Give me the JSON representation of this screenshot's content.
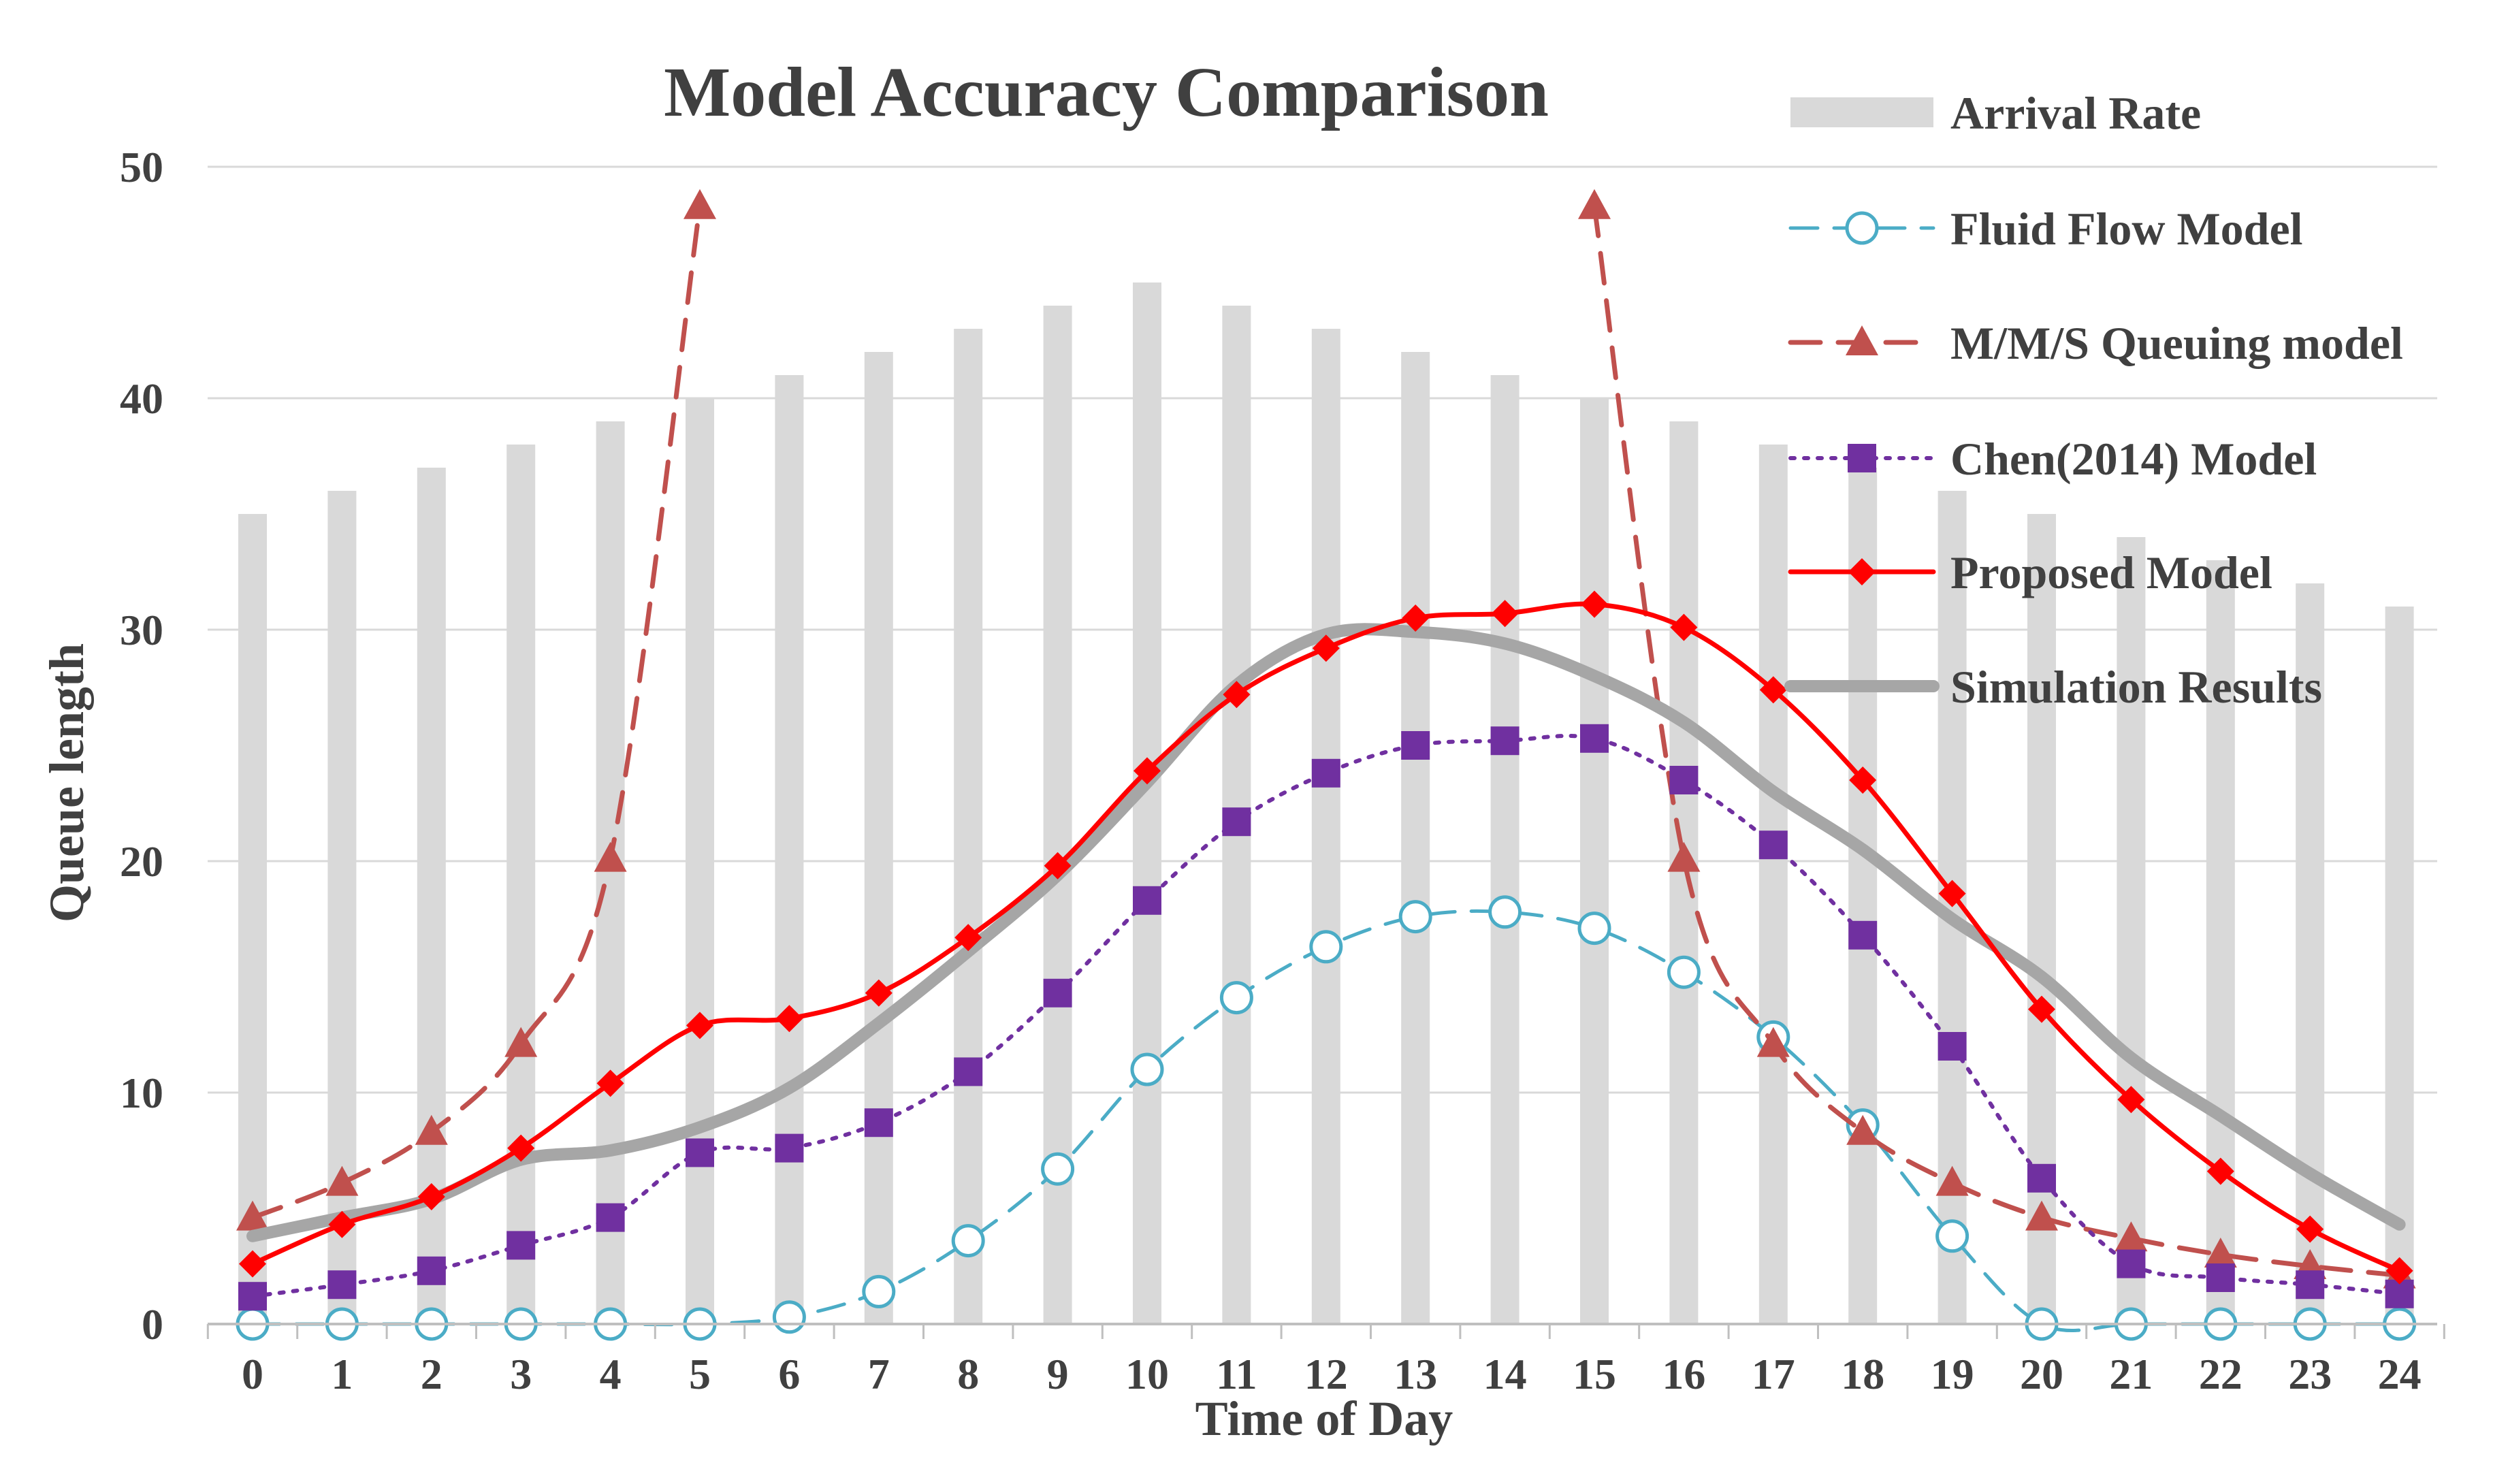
{
  "chart_data": {
    "type": "bar",
    "title": "Model Accuracy Comparison",
    "xlabel": "Time  of Day",
    "ylabel": "Queue length",
    "x": [
      0,
      1,
      2,
      3,
      4,
      5,
      6,
      7,
      8,
      9,
      10,
      11,
      12,
      13,
      14,
      15,
      16,
      17,
      18,
      19,
      20,
      21,
      22,
      23,
      24
    ],
    "xticks": [
      "0",
      "1",
      "2",
      "3",
      "4",
      "5",
      "6",
      "7",
      "8",
      "9",
      "10",
      "11",
      "12",
      "13",
      "14",
      "15",
      "16",
      "17",
      "18",
      "19",
      "20",
      "21",
      "22",
      "23",
      "24"
    ],
    "yticks": [
      "0",
      "10",
      "20",
      "30",
      "40",
      "50"
    ],
    "ylim": [
      0,
      50
    ],
    "grid": true,
    "legend_position": "right",
    "series": [
      {
        "name": "Arrival Rate",
        "type": "bar",
        "color": "#d9d9d9",
        "values": [
          35,
          36,
          37,
          38,
          39,
          40,
          41,
          42,
          43,
          44,
          45,
          44,
          43,
          42,
          41,
          40,
          39,
          38,
          37,
          36,
          35,
          34,
          33,
          32,
          31
        ]
      },
      {
        "name": "Fluid Flow Model",
        "type": "line",
        "style": "dashed-circle",
        "color": "#4bacc6",
        "values": [
          0,
          0,
          0,
          0,
          0,
          0,
          0.3,
          1.4,
          3.6,
          6.7,
          11,
          14.1,
          16.3,
          17.6,
          17.8,
          17.1,
          15.2,
          12.4,
          8.6,
          3.8,
          0,
          0,
          0,
          0,
          0
        ]
      },
      {
        "name": "M/M/S Queuing model",
        "type": "line",
        "style": "dashed-triangle",
        "color": "#c0504d",
        "values": [
          4.6,
          6.1,
          8.3,
          12.1,
          20.1,
          48.3,
          null,
          null,
          null,
          null,
          null,
          null,
          null,
          null,
          null,
          48.3,
          20.1,
          12.1,
          8.3,
          6.1,
          4.6,
          3.7,
          3,
          2.5,
          2.1
        ]
      },
      {
        "name": "Chen(2014)  Model",
        "type": "line",
        "style": "dotted-square",
        "color": "#7030a0",
        "values": [
          1.2,
          1.7,
          2.3,
          3.4,
          4.6,
          7.4,
          7.6,
          8.7,
          10.9,
          14.3,
          18.3,
          21.7,
          23.8,
          25,
          25.2,
          25.3,
          23.5,
          20.7,
          16.8,
          12,
          6.3,
          2.6,
          2,
          1.7,
          1.3
        ]
      },
      {
        "name": "Proposed Model",
        "type": "line",
        "style": "solid-diamond",
        "color": "#ff0000",
        "values": [
          2.6,
          4.3,
          5.5,
          7.6,
          10.4,
          12.9,
          13.2,
          14.3,
          16.7,
          19.8,
          23.9,
          27.2,
          29.2,
          30.5,
          30.7,
          31.1,
          30.1,
          27.4,
          23.5,
          18.6,
          13.6,
          9.7,
          6.6,
          4.1,
          2.3
        ]
      },
      {
        "name": "Simulation Results",
        "type": "line",
        "style": "thick-solid",
        "color": "#a6a6a6",
        "values": [
          3.8,
          4.6,
          5.4,
          7.1,
          7.5,
          8.5,
          10.2,
          13,
          16.1,
          19.4,
          23.4,
          27.6,
          29.8,
          29.9,
          29.4,
          28,
          26,
          23,
          20.5,
          17.5,
          15,
          11.5,
          9,
          6.5,
          4.3
        ]
      }
    ]
  }
}
